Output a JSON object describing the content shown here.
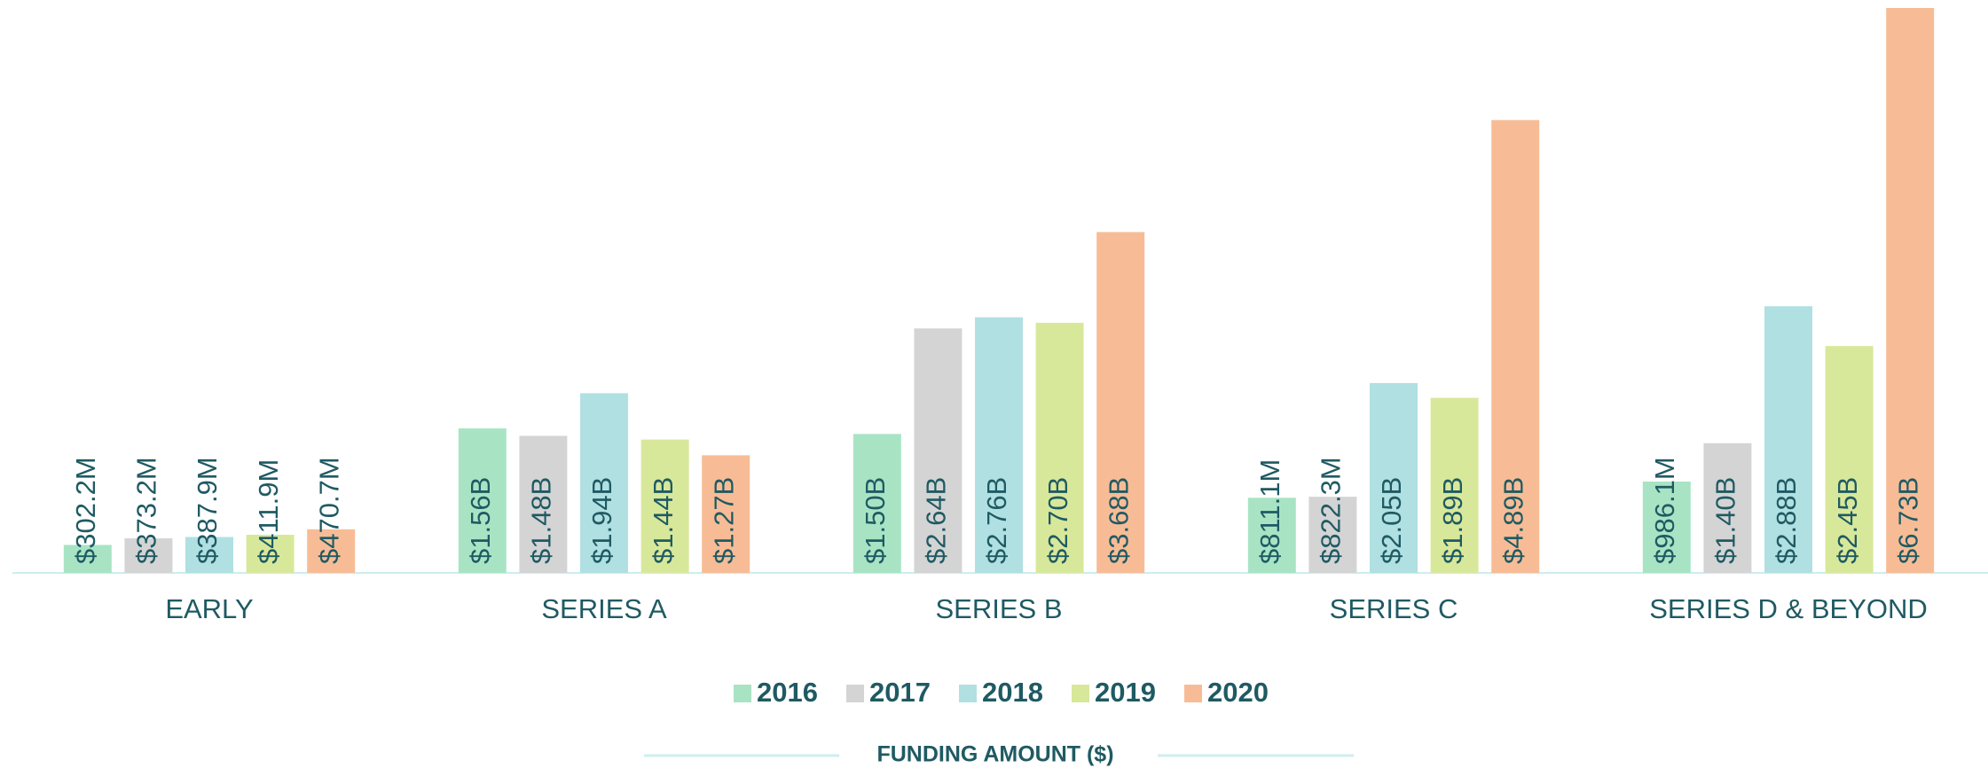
{
  "chart_data": {
    "type": "bar",
    "categories": [
      "EARLY",
      "SERIES A",
      "SERIES B",
      "SERIES C",
      "SERIES D & BEYOND"
    ],
    "series": [
      {
        "name": "2016",
        "color": "#a8e4c4",
        "values": [
          302200000,
          1560000000,
          1500000000,
          811100000,
          986100000
        ],
        "value_labels": [
          "$302.2M",
          "$1.56B",
          "$1.50B",
          "$811.1M",
          "$986.1M"
        ]
      },
      {
        "name": "2017",
        "color": "#d4d4d4",
        "values": [
          373200000,
          1480000000,
          2640000000,
          822300000,
          1400000000
        ],
        "value_labels": [
          "$373.2M",
          "$1.48B",
          "$2.64B",
          "$822.3M",
          "$1.40B"
        ]
      },
      {
        "name": "2018",
        "color": "#b0e0e2",
        "values": [
          387900000,
          1940000000,
          2760000000,
          2050000000,
          2880000000
        ],
        "value_labels": [
          "$387.9M",
          "$1.94B",
          "$2.76B",
          "$2.05B",
          "$2.88B"
        ]
      },
      {
        "name": "2019",
        "color": "#d8e89a",
        "values": [
          411900000,
          1440000000,
          2700000000,
          1890000000,
          2450000000
        ],
        "value_labels": [
          "$411.9M",
          "$1.44B",
          "$2.70B",
          "$1.89B",
          "$2.45B"
        ]
      },
      {
        "name": "2020",
        "color": "#f7bc96",
        "values": [
          470700000,
          1270000000,
          3680000000,
          4890000000,
          6730000000
        ],
        "value_labels": [
          "$470.7M",
          "$1.27B",
          "$3.68B",
          "$4.89B",
          "$6.73B"
        ]
      }
    ],
    "ylim": [
      0,
      6100000000
    ],
    "legend_title": "FUNDING AMOUNT ($)",
    "legend": "bottom"
  }
}
